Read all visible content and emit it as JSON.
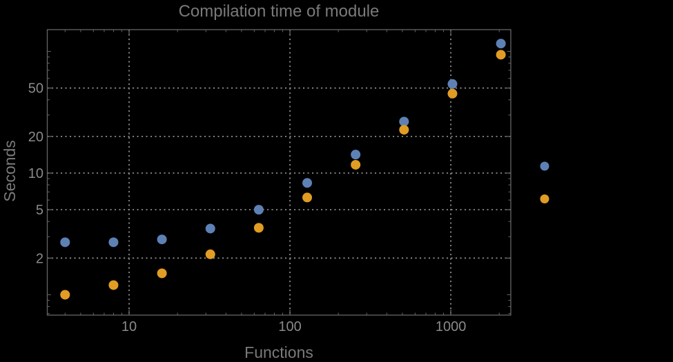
{
  "window": {
    "background_color": "#000000"
  },
  "chart_data": {
    "type": "scatter",
    "title": "Compilation time of module",
    "xlabel": "Functions",
    "ylabel": "Seconds",
    "x_scale": "log",
    "y_scale": "log",
    "grid": "dotted",
    "xlim": [
      3.1,
      2360
    ],
    "ylim": [
      0.68,
      151
    ],
    "x_major_ticks": [
      10,
      100,
      1000
    ],
    "x_major_labels": [
      "10",
      "100",
      "1000"
    ],
    "y_major_ticks": [
      2,
      5,
      10,
      20,
      50
    ],
    "y_major_labels": [
      "2",
      "5",
      "10",
      "20",
      "50"
    ],
    "x": [
      4,
      8,
      16,
      32,
      64,
      128,
      256,
      512,
      1024,
      2048
    ],
    "series": [
      {
        "name": "series-1-blue",
        "color": "#5E81B5",
        "values": [
          2.7,
          2.7,
          2.85,
          3.5,
          5.0,
          8.3,
          14.2,
          26.5,
          54,
          116
        ]
      },
      {
        "name": "series-2-orange",
        "color": "#E19C24",
        "values": [
          1.0,
          1.2,
          1.5,
          2.15,
          3.55,
          6.3,
          11.7,
          22.7,
          45,
          94
        ]
      }
    ],
    "legend": {
      "position": "outside-right",
      "entries": [
        {
          "label": "",
          "color": "#5E81B5"
        },
        {
          "label": "",
          "color": "#E19C24"
        }
      ]
    }
  },
  "style": {
    "title_color": "#7a7a7a",
    "axis_label_color": "#7a7a7a",
    "tick_label_color": "#8a8a8a",
    "frame_color": "#666666",
    "grid_color": "#8c8c8c",
    "tick_label_font_px": 20
  }
}
